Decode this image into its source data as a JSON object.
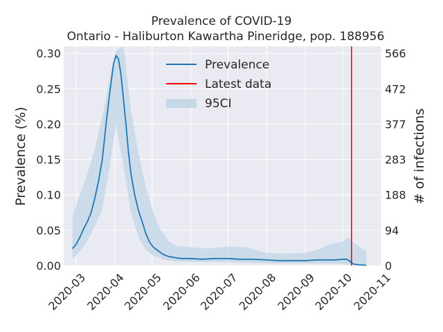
{
  "chart_data": {
    "type": "line",
    "title": "Prevalence of COVID-19",
    "subtitle": "Ontario - Haliburton Kawartha Pineridge, pop. 188956",
    "ylabel": "Prevalence (%)",
    "y2label": "# of infections",
    "ylim": [
      0,
      0.31
    ],
    "yticks": [
      "0.00",
      "0.05",
      "0.10",
      "0.15",
      "0.20",
      "0.25",
      "0.30"
    ],
    "y2ticks": [
      "0",
      "94",
      "188",
      "283",
      "377",
      "472",
      "566"
    ],
    "xlim": [
      "2020-02-20",
      "2020-11-01"
    ],
    "xticks": [
      "2020-03",
      "2020-04",
      "2020-05",
      "2020-06",
      "2020-07",
      "2020-08",
      "2020-09",
      "2020-10",
      "2020-11"
    ],
    "grid": true,
    "legend_position": "top-center",
    "legend": [
      "Prevalence",
      "Latest data",
      "95CI"
    ],
    "colors": {
      "prevalence": "#1f77b4",
      "latest": "#ff0000",
      "ci": "#c6d8e8",
      "background": "#eaeaf2"
    },
    "latest_date": "2020-10-08",
    "series": [
      {
        "name": "Prevalence",
        "x": [
          "2020-02-27",
          "2020-03-01",
          "2020-03-04",
          "2020-03-07",
          "2020-03-10",
          "2020-03-13",
          "2020-03-16",
          "2020-03-19",
          "2020-03-22",
          "2020-03-25",
          "2020-03-28",
          "2020-03-31",
          "2020-04-02",
          "2020-04-04",
          "2020-04-06",
          "2020-04-08",
          "2020-04-10",
          "2020-04-12",
          "2020-04-14",
          "2020-04-17",
          "2020-04-20",
          "2020-04-23",
          "2020-04-26",
          "2020-04-29",
          "2020-05-02",
          "2020-05-05",
          "2020-05-08",
          "2020-05-11",
          "2020-05-14",
          "2020-05-17",
          "2020-05-20",
          "2020-05-25",
          "2020-06-01",
          "2020-06-10",
          "2020-06-20",
          "2020-07-01",
          "2020-07-10",
          "2020-07-20",
          "2020-08-01",
          "2020-08-10",
          "2020-08-20",
          "2020-09-01",
          "2020-09-10",
          "2020-09-20",
          "2020-09-25",
          "2020-10-01",
          "2020-10-04",
          "2020-10-06",
          "2020-10-08",
          "2020-10-10",
          "2020-10-15",
          "2020-10-20"
        ],
        "values": [
          0.024,
          0.03,
          0.04,
          0.052,
          0.062,
          0.075,
          0.095,
          0.12,
          0.15,
          0.2,
          0.245,
          0.285,
          0.297,
          0.292,
          0.27,
          0.235,
          0.2,
          0.16,
          0.13,
          0.1,
          0.078,
          0.062,
          0.045,
          0.033,
          0.026,
          0.022,
          0.018,
          0.015,
          0.013,
          0.012,
          0.011,
          0.01,
          0.01,
          0.009,
          0.01,
          0.01,
          0.009,
          0.009,
          0.008,
          0.007,
          0.007,
          0.007,
          0.008,
          0.008,
          0.008,
          0.009,
          0.009,
          0.007,
          0.004,
          0.002,
          0.001,
          0.0005
        ]
      }
    ],
    "ci": {
      "x": [
        "2020-02-27",
        "2020-03-04",
        "2020-03-10",
        "2020-03-16",
        "2020-03-22",
        "2020-03-28",
        "2020-04-02",
        "2020-04-08",
        "2020-04-14",
        "2020-04-20",
        "2020-04-26",
        "2020-05-02",
        "2020-05-08",
        "2020-05-14",
        "2020-05-20",
        "2020-06-01",
        "2020-06-15",
        "2020-07-01",
        "2020-07-15",
        "2020-08-01",
        "2020-08-15",
        "2020-09-01",
        "2020-09-10",
        "2020-09-20",
        "2020-10-01",
        "2020-10-05",
        "2020-10-10",
        "2020-10-15",
        "2020-10-20"
      ],
      "upper": [
        0.07,
        0.1,
        0.13,
        0.165,
        0.21,
        0.265,
        0.305,
        0.31,
        0.22,
        0.16,
        0.11,
        0.075,
        0.05,
        0.035,
        0.028,
        0.026,
        0.024,
        0.027,
        0.026,
        0.018,
        0.017,
        0.018,
        0.022,
        0.03,
        0.034,
        0.04,
        0.032,
        0.025,
        0.02
      ],
      "lower": [
        0.01,
        0.02,
        0.035,
        0.055,
        0.08,
        0.14,
        0.2,
        0.14,
        0.075,
        0.04,
        0.022,
        0.014,
        0.01,
        0.007,
        0.006,
        0.005,
        0.005,
        0.005,
        0.004,
        0.003,
        0.003,
        0.003,
        0.003,
        0.003,
        0.002,
        0.001,
        0.0005,
        0.0002,
        0.0001
      ]
    }
  }
}
